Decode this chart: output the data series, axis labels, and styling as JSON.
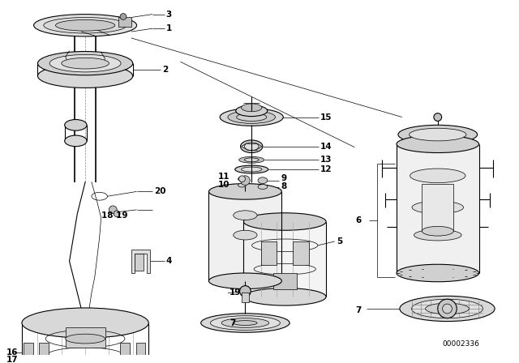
{
  "background_color": "#ffffff",
  "line_color": "#000000",
  "part_number_text": "00002336",
  "figsize": [
    6.4,
    4.48
  ],
  "dpi": 100,
  "lw_thin": 0.5,
  "lw_med": 0.8,
  "lw_thick": 1.2,
  "label_fontsize": 7.5,
  "label_fontweight": "bold"
}
